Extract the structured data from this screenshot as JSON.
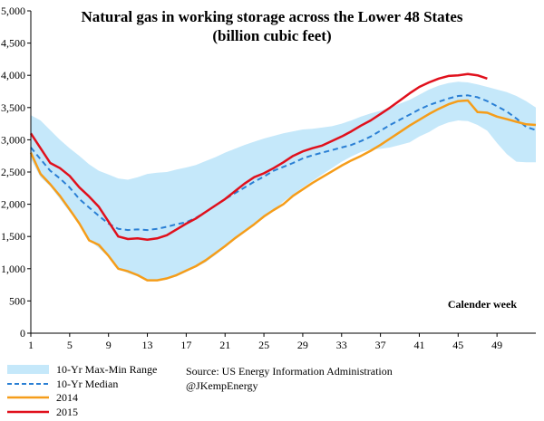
{
  "chart_data": {
    "type": "line",
    "title": "Natural gas in working storage across the Lower 48 States",
    "subtitle": "(billion cubic feet)",
    "xlabel": "Calender week",
    "ylabel": "",
    "xlim": [
      1,
      53
    ],
    "ylim": [
      0,
      5000
    ],
    "y_ticks": [
      0,
      500,
      1000,
      1500,
      2000,
      2500,
      3000,
      3500,
      4000,
      4500,
      5000
    ],
    "y_tick_labels": [
      "0",
      "500",
      "1,000",
      "1,500",
      "2,000",
      "2,500",
      "3,000",
      "3,500",
      "4,000",
      "4,500",
      "5,000"
    ],
    "x_ticks": [
      1,
      5,
      9,
      13,
      17,
      21,
      25,
      29,
      33,
      37,
      41,
      45,
      49
    ],
    "x_tick_labels": [
      "1",
      "5",
      "9",
      "13",
      "17",
      "21",
      "25",
      "29",
      "33",
      "37",
      "41",
      "45",
      "49"
    ],
    "grid": false,
    "legend_position": "bottom-left",
    "range_band": {
      "name": "10-Yr Max-Min Range",
      "color": "#c5e8fa",
      "x": [
        1,
        2,
        3,
        4,
        5,
        6,
        7,
        8,
        9,
        10,
        11,
        12,
        13,
        14,
        15,
        16,
        17,
        18,
        19,
        20,
        21,
        22,
        23,
        24,
        25,
        26,
        27,
        28,
        29,
        30,
        31,
        32,
        33,
        34,
        35,
        36,
        37,
        38,
        39,
        40,
        41,
        42,
        43,
        44,
        45,
        46,
        47,
        48,
        49,
        50,
        51,
        52,
        53
      ],
      "max": [
        3380,
        3300,
        3150,
        3000,
        2870,
        2750,
        2620,
        2520,
        2460,
        2400,
        2380,
        2420,
        2470,
        2490,
        2500,
        2540,
        2570,
        2610,
        2670,
        2730,
        2800,
        2860,
        2920,
        2970,
        3020,
        3060,
        3100,
        3130,
        3160,
        3170,
        3190,
        3210,
        3250,
        3300,
        3360,
        3410,
        3450,
        3500,
        3560,
        3620,
        3700,
        3780,
        3840,
        3880,
        3900,
        3890,
        3860,
        3820,
        3780,
        3740,
        3680,
        3600,
        3500
      ],
      "min": [
        2700,
        2420,
        2280,
        2080,
        1880,
        1700,
        1450,
        1320,
        1180,
        1000,
        930,
        880,
        820,
        810,
        830,
        880,
        950,
        1030,
        1100,
        1210,
        1330,
        1450,
        1560,
        1670,
        1800,
        1910,
        2040,
        2150,
        2260,
        2360,
        2460,
        2560,
        2660,
        2740,
        2810,
        2850,
        2860,
        2880,
        2920,
        2960,
        3050,
        3120,
        3210,
        3270,
        3300,
        3290,
        3230,
        3140,
        2950,
        2780,
        2660,
        2650,
        2650
      ]
    },
    "series": [
      {
        "name": "10-Yr Median",
        "color": "#2a7fd4",
        "dashed": true,
        "x": [
          1,
          2,
          3,
          4,
          5,
          6,
          7,
          8,
          9,
          10,
          11,
          12,
          13,
          14,
          15,
          16,
          17,
          18,
          19,
          20,
          21,
          22,
          23,
          24,
          25,
          26,
          27,
          28,
          29,
          30,
          31,
          32,
          33,
          34,
          35,
          36,
          37,
          38,
          39,
          40,
          41,
          42,
          43,
          44,
          45,
          46,
          47,
          48,
          49,
          50,
          51,
          52,
          53
        ],
        "values": [
          2880,
          2700,
          2520,
          2400,
          2260,
          2080,
          1950,
          1820,
          1700,
          1620,
          1600,
          1610,
          1600,
          1620,
          1650,
          1690,
          1720,
          1790,
          1880,
          1980,
          2080,
          2170,
          2260,
          2350,
          2430,
          2520,
          2580,
          2640,
          2710,
          2760,
          2800,
          2840,
          2880,
          2920,
          2980,
          3050,
          3140,
          3230,
          3310,
          3390,
          3470,
          3540,
          3590,
          3640,
          3680,
          3690,
          3660,
          3600,
          3520,
          3440,
          3330,
          3200,
          3150
        ]
      },
      {
        "name": "2014",
        "color": "#f59d1a",
        "dashed": false,
        "x": [
          1,
          2,
          3,
          4,
          5,
          6,
          7,
          8,
          9,
          10,
          11,
          12,
          13,
          14,
          15,
          16,
          17,
          18,
          19,
          20,
          21,
          22,
          23,
          24,
          25,
          26,
          27,
          28,
          29,
          30,
          31,
          32,
          33,
          34,
          35,
          36,
          37,
          38,
          39,
          40,
          41,
          42,
          43,
          44,
          45,
          46,
          47,
          48,
          49,
          50,
          51,
          52,
          53
        ],
        "values": [
          2800,
          2470,
          2310,
          2130,
          1920,
          1700,
          1440,
          1370,
          1200,
          1000,
          960,
          900,
          820,
          820,
          850,
          900,
          970,
          1040,
          1130,
          1240,
          1350,
          1470,
          1580,
          1690,
          1810,
          1910,
          2000,
          2130,
          2230,
          2330,
          2420,
          2510,
          2600,
          2680,
          2750,
          2830,
          2920,
          3020,
          3120,
          3220,
          3310,
          3400,
          3480,
          3550,
          3600,
          3610,
          3430,
          3420,
          3360,
          3320,
          3280,
          3240,
          3230
        ]
      },
      {
        "name": "2015",
        "color": "#e0101c",
        "dashed": false,
        "x": [
          1,
          2,
          3,
          4,
          5,
          6,
          7,
          8,
          9,
          10,
          11,
          12,
          13,
          14,
          15,
          16,
          17,
          18,
          19,
          20,
          21,
          22,
          23,
          24,
          25,
          26,
          27,
          28,
          29,
          30,
          31,
          32,
          33,
          34,
          35,
          36,
          37,
          38,
          39,
          40,
          41,
          42,
          43,
          44,
          45,
          46,
          47,
          48
        ],
        "values": [
          3100,
          2870,
          2640,
          2560,
          2440,
          2260,
          2120,
          1960,
          1730,
          1500,
          1460,
          1470,
          1450,
          1470,
          1520,
          1610,
          1700,
          1780,
          1880,
          1980,
          2080,
          2200,
          2320,
          2420,
          2480,
          2560,
          2650,
          2750,
          2820,
          2870,
          2910,
          2980,
          3050,
          3130,
          3220,
          3300,
          3400,
          3500,
          3610,
          3720,
          3820,
          3890,
          3950,
          3990,
          4000,
          4020,
          4000,
          3950
        ]
      }
    ],
    "annotations": [
      "Source: US Energy Information Administration",
      "@JKempEnergy"
    ]
  }
}
